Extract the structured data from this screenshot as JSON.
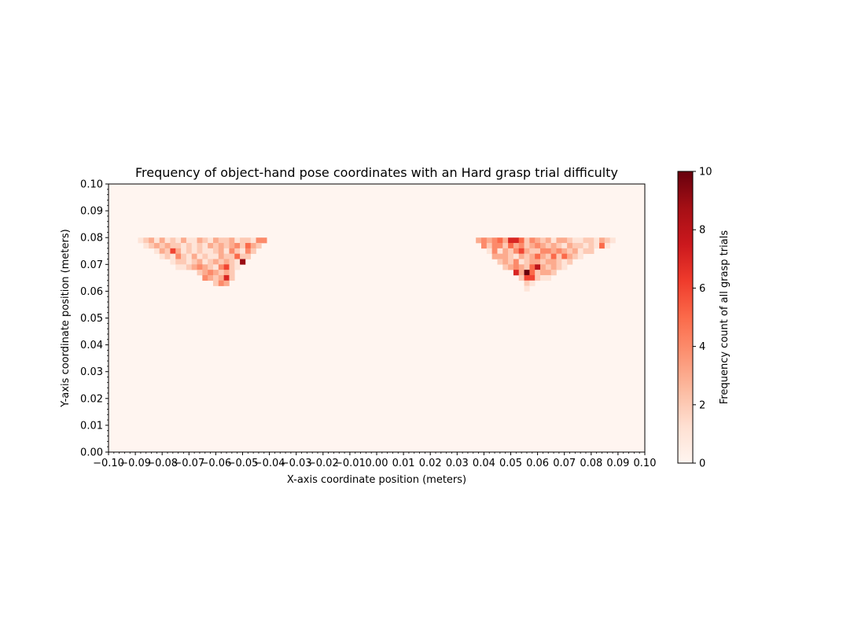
{
  "chart_data": {
    "type": "heatmap",
    "title": "Frequency of object-hand pose coordinates with an Hard grasp trial difficulty",
    "xlabel": "X-axis coordinate position (meters)",
    "ylabel": "Y-axis coordinate position (meters)",
    "xlim": [
      -0.1,
      0.1
    ],
    "ylim": [
      0.0,
      0.1
    ],
    "xticks": [
      "−0.10",
      "−0.09",
      "−0.08",
      "−0.07",
      "−0.06",
      "−0.05",
      "−0.04",
      "−0.03",
      "−0.02",
      "−0.01",
      "0.00",
      "0.01",
      "0.02",
      "0.03",
      "0.04",
      "0.05",
      "0.06",
      "0.07",
      "0.08",
      "0.09",
      "0.10"
    ],
    "yticks": [
      "0.00",
      "0.01",
      "0.02",
      "0.03",
      "0.04",
      "0.05",
      "0.06",
      "0.07",
      "0.08",
      "0.09",
      "0.10"
    ],
    "colormap": "Reds",
    "colorbar": {
      "label": "Frequency count of all grasp trials",
      "range": [
        0,
        10
      ],
      "ticks": [
        "0",
        "2",
        "4",
        "6",
        "8",
        "10"
      ]
    },
    "bin_size": 0.002,
    "minor_ticks": true,
    "grid": false,
    "cells": [
      [
        -0.088,
        0.079,
        1
      ],
      [
        -0.086,
        0.079,
        2
      ],
      [
        -0.084,
        0.079,
        3
      ],
      [
        -0.082,
        0.079,
        1
      ],
      [
        -0.08,
        0.079,
        3
      ],
      [
        -0.078,
        0.079,
        1
      ],
      [
        -0.076,
        0.079,
        2
      ],
      [
        -0.074,
        0.079,
        1
      ],
      [
        -0.072,
        0.079,
        3
      ],
      [
        -0.07,
        0.079,
        1
      ],
      [
        -0.068,
        0.079,
        1
      ],
      [
        -0.066,
        0.079,
        3
      ],
      [
        -0.064,
        0.079,
        2
      ],
      [
        -0.062,
        0.079,
        1
      ],
      [
        -0.06,
        0.079,
        3
      ],
      [
        -0.058,
        0.079,
        2
      ],
      [
        -0.056,
        0.079,
        2
      ],
      [
        -0.054,
        0.079,
        3
      ],
      [
        -0.052,
        0.079,
        1
      ],
      [
        -0.05,
        0.079,
        2
      ],
      [
        -0.048,
        0.079,
        2
      ],
      [
        -0.046,
        0.079,
        1
      ],
      [
        -0.044,
        0.079,
        4
      ],
      [
        -0.042,
        0.079,
        4
      ],
      [
        -0.086,
        0.077,
        1
      ],
      [
        -0.084,
        0.077,
        2
      ],
      [
        -0.082,
        0.077,
        3
      ],
      [
        -0.08,
        0.077,
        2
      ],
      [
        -0.078,
        0.077,
        3
      ],
      [
        -0.076,
        0.077,
        2
      ],
      [
        -0.074,
        0.077,
        2
      ],
      [
        -0.072,
        0.077,
        1
      ],
      [
        -0.07,
        0.077,
        2
      ],
      [
        -0.068,
        0.077,
        1
      ],
      [
        -0.066,
        0.077,
        2
      ],
      [
        -0.064,
        0.077,
        1
      ],
      [
        -0.062,
        0.077,
        3
      ],
      [
        -0.06,
        0.077,
        2
      ],
      [
        -0.058,
        0.077,
        3
      ],
      [
        -0.056,
        0.077,
        2
      ],
      [
        -0.054,
        0.077,
        3
      ],
      [
        -0.052,
        0.077,
        4
      ],
      [
        -0.05,
        0.077,
        2
      ],
      [
        -0.048,
        0.077,
        5
      ],
      [
        -0.046,
        0.077,
        3
      ],
      [
        -0.044,
        0.077,
        2
      ],
      [
        -0.082,
        0.075,
        1
      ],
      [
        -0.08,
        0.075,
        3
      ],
      [
        -0.078,
        0.075,
        2
      ],
      [
        -0.076,
        0.075,
        6
      ],
      [
        -0.074,
        0.075,
        3
      ],
      [
        -0.072,
        0.075,
        1
      ],
      [
        -0.07,
        0.075,
        2
      ],
      [
        -0.068,
        0.075,
        1
      ],
      [
        -0.066,
        0.075,
        2
      ],
      [
        -0.064,
        0.075,
        1
      ],
      [
        -0.062,
        0.075,
        1
      ],
      [
        -0.06,
        0.075,
        2
      ],
      [
        -0.058,
        0.075,
        3
      ],
      [
        -0.056,
        0.075,
        1
      ],
      [
        -0.054,
        0.075,
        4
      ],
      [
        -0.052,
        0.075,
        2
      ],
      [
        -0.05,
        0.075,
        1
      ],
      [
        -0.048,
        0.075,
        4
      ],
      [
        -0.046,
        0.075,
        2
      ],
      [
        -0.08,
        0.073,
        1
      ],
      [
        -0.078,
        0.073,
        2
      ],
      [
        -0.076,
        0.073,
        1
      ],
      [
        -0.074,
        0.073,
        4
      ],
      [
        -0.072,
        0.073,
        2
      ],
      [
        -0.07,
        0.073,
        1
      ],
      [
        -0.068,
        0.073,
        3
      ],
      [
        -0.066,
        0.073,
        1
      ],
      [
        -0.064,
        0.073,
        2
      ],
      [
        -0.062,
        0.073,
        1
      ],
      [
        -0.06,
        0.073,
        1
      ],
      [
        -0.058,
        0.073,
        3
      ],
      [
        -0.056,
        0.073,
        2
      ],
      [
        -0.054,
        0.073,
        2
      ],
      [
        -0.052,
        0.073,
        5
      ],
      [
        -0.05,
        0.073,
        2
      ],
      [
        -0.048,
        0.073,
        2
      ],
      [
        -0.076,
        0.071,
        1
      ],
      [
        -0.074,
        0.071,
        2
      ],
      [
        -0.072,
        0.071,
        2
      ],
      [
        -0.07,
        0.071,
        1
      ],
      [
        -0.068,
        0.071,
        2
      ],
      [
        -0.066,
        0.071,
        3
      ],
      [
        -0.064,
        0.071,
        1
      ],
      [
        -0.062,
        0.071,
        2
      ],
      [
        -0.06,
        0.071,
        3
      ],
      [
        -0.058,
        0.071,
        2
      ],
      [
        -0.056,
        0.071,
        3
      ],
      [
        -0.054,
        0.071,
        2
      ],
      [
        -0.052,
        0.071,
        1
      ],
      [
        -0.05,
        0.071,
        9
      ],
      [
        -0.074,
        0.069,
        1
      ],
      [
        -0.072,
        0.069,
        1
      ],
      [
        -0.07,
        0.069,
        2
      ],
      [
        -0.068,
        0.069,
        3
      ],
      [
        -0.066,
        0.069,
        4
      ],
      [
        -0.064,
        0.069,
        3
      ],
      [
        -0.062,
        0.069,
        2
      ],
      [
        -0.06,
        0.069,
        1
      ],
      [
        -0.058,
        0.069,
        4
      ],
      [
        -0.056,
        0.069,
        6
      ],
      [
        -0.054,
        0.069,
        2
      ],
      [
        -0.052,
        0.069,
        1
      ],
      [
        -0.066,
        0.067,
        2
      ],
      [
        -0.064,
        0.067,
        3
      ],
      [
        -0.062,
        0.067,
        4
      ],
      [
        -0.06,
        0.067,
        3
      ],
      [
        -0.058,
        0.067,
        2
      ],
      [
        -0.056,
        0.067,
        3
      ],
      [
        -0.054,
        0.067,
        2
      ],
      [
        -0.064,
        0.065,
        4
      ],
      [
        -0.062,
        0.065,
        3
      ],
      [
        -0.06,
        0.065,
        2
      ],
      [
        -0.058,
        0.065,
        3
      ],
      [
        -0.056,
        0.065,
        7
      ],
      [
        -0.054,
        0.065,
        2
      ],
      [
        -0.06,
        0.063,
        2
      ],
      [
        -0.058,
        0.063,
        4
      ],
      [
        -0.056,
        0.063,
        3
      ],
      [
        0.038,
        0.079,
        3
      ],
      [
        0.04,
        0.079,
        4
      ],
      [
        0.042,
        0.079,
        3
      ],
      [
        0.044,
        0.079,
        4
      ],
      [
        0.046,
        0.079,
        5
      ],
      [
        0.048,
        0.079,
        3
      ],
      [
        0.05,
        0.079,
        7
      ],
      [
        0.052,
        0.079,
        7
      ],
      [
        0.054,
        0.079,
        5
      ],
      [
        0.056,
        0.079,
        2
      ],
      [
        0.058,
        0.079,
        4
      ],
      [
        0.06,
        0.079,
        3
      ],
      [
        0.062,
        0.079,
        2
      ],
      [
        0.064,
        0.079,
        3
      ],
      [
        0.066,
        0.079,
        1
      ],
      [
        0.068,
        0.079,
        3
      ],
      [
        0.07,
        0.079,
        3
      ],
      [
        0.072,
        0.079,
        2
      ],
      [
        0.074,
        0.079,
        1
      ],
      [
        0.076,
        0.079,
        1
      ],
      [
        0.078,
        0.079,
        2
      ],
      [
        0.08,
        0.079,
        2
      ],
      [
        0.082,
        0.079,
        1
      ],
      [
        0.084,
        0.079,
        3
      ],
      [
        0.086,
        0.079,
        2
      ],
      [
        0.088,
        0.079,
        1
      ],
      [
        0.04,
        0.077,
        4
      ],
      [
        0.042,
        0.077,
        2
      ],
      [
        0.044,
        0.077,
        4
      ],
      [
        0.046,
        0.077,
        4
      ],
      [
        0.048,
        0.077,
        2
      ],
      [
        0.05,
        0.077,
        5
      ],
      [
        0.052,
        0.077,
        3
      ],
      [
        0.054,
        0.077,
        4
      ],
      [
        0.056,
        0.077,
        2
      ],
      [
        0.058,
        0.077,
        3
      ],
      [
        0.06,
        0.077,
        4
      ],
      [
        0.062,
        0.077,
        3
      ],
      [
        0.064,
        0.077,
        2
      ],
      [
        0.066,
        0.077,
        3
      ],
      [
        0.068,
        0.077,
        2
      ],
      [
        0.07,
        0.077,
        1
      ],
      [
        0.072,
        0.077,
        3
      ],
      [
        0.074,
        0.077,
        2
      ],
      [
        0.076,
        0.077,
        2
      ],
      [
        0.078,
        0.077,
        1
      ],
      [
        0.08,
        0.077,
        2
      ],
      [
        0.082,
        0.077,
        1
      ],
      [
        0.084,
        0.077,
        5
      ],
      [
        0.086,
        0.077,
        1
      ],
      [
        0.042,
        0.075,
        1
      ],
      [
        0.044,
        0.075,
        4
      ],
      [
        0.046,
        0.075,
        1
      ],
      [
        0.048,
        0.075,
        3
      ],
      [
        0.05,
        0.075,
        2
      ],
      [
        0.052,
        0.075,
        4
      ],
      [
        0.054,
        0.075,
        6
      ],
      [
        0.056,
        0.075,
        3
      ],
      [
        0.058,
        0.075,
        2
      ],
      [
        0.06,
        0.075,
        2
      ],
      [
        0.062,
        0.075,
        4
      ],
      [
        0.064,
        0.075,
        4
      ],
      [
        0.066,
        0.075,
        3
      ],
      [
        0.068,
        0.075,
        4
      ],
      [
        0.07,
        0.075,
        3
      ],
      [
        0.072,
        0.075,
        2
      ],
      [
        0.074,
        0.075,
        3
      ],
      [
        0.076,
        0.075,
        1
      ],
      [
        0.078,
        0.075,
        2
      ],
      [
        0.08,
        0.075,
        2
      ],
      [
        0.044,
        0.073,
        3
      ],
      [
        0.046,
        0.073,
        3
      ],
      [
        0.048,
        0.073,
        3
      ],
      [
        0.05,
        0.073,
        2
      ],
      [
        0.052,
        0.073,
        1
      ],
      [
        0.054,
        0.073,
        3
      ],
      [
        0.056,
        0.073,
        2
      ],
      [
        0.058,
        0.073,
        3
      ],
      [
        0.06,
        0.073,
        5
      ],
      [
        0.062,
        0.073,
        3
      ],
      [
        0.064,
        0.073,
        2
      ],
      [
        0.066,
        0.073,
        5
      ],
      [
        0.068,
        0.073,
        2
      ],
      [
        0.07,
        0.073,
        5
      ],
      [
        0.072,
        0.073,
        3
      ],
      [
        0.074,
        0.073,
        2
      ],
      [
        0.076,
        0.073,
        1
      ],
      [
        0.046,
        0.071,
        2
      ],
      [
        0.048,
        0.071,
        3
      ],
      [
        0.05,
        0.071,
        2
      ],
      [
        0.052,
        0.071,
        4
      ],
      [
        0.054,
        0.071,
        1
      ],
      [
        0.056,
        0.071,
        2
      ],
      [
        0.058,
        0.071,
        3
      ],
      [
        0.06,
        0.071,
        3
      ],
      [
        0.062,
        0.071,
        2
      ],
      [
        0.064,
        0.071,
        3
      ],
      [
        0.066,
        0.071,
        3
      ],
      [
        0.068,
        0.071,
        2
      ],
      [
        0.07,
        0.071,
        1
      ],
      [
        0.072,
        0.071,
        2
      ],
      [
        0.048,
        0.069,
        2
      ],
      [
        0.05,
        0.069,
        3
      ],
      [
        0.052,
        0.069,
        4
      ],
      [
        0.054,
        0.069,
        3
      ],
      [
        0.056,
        0.069,
        2
      ],
      [
        0.058,
        0.069,
        5
      ],
      [
        0.06,
        0.069,
        8
      ],
      [
        0.062,
        0.069,
        3
      ],
      [
        0.064,
        0.069,
        2
      ],
      [
        0.066,
        0.069,
        3
      ],
      [
        0.068,
        0.069,
        2
      ],
      [
        0.07,
        0.069,
        1
      ],
      [
        0.052,
        0.067,
        7
      ],
      [
        0.054,
        0.067,
        3
      ],
      [
        0.056,
        0.067,
        10
      ],
      [
        0.058,
        0.067,
        5
      ],
      [
        0.06,
        0.067,
        2
      ],
      [
        0.062,
        0.067,
        3
      ],
      [
        0.064,
        0.067,
        3
      ],
      [
        0.066,
        0.067,
        2
      ],
      [
        0.054,
        0.065,
        2
      ],
      [
        0.056,
        0.065,
        6
      ],
      [
        0.058,
        0.065,
        6
      ],
      [
        0.06,
        0.065,
        2
      ],
      [
        0.062,
        0.065,
        1
      ],
      [
        0.064,
        0.065,
        1
      ],
      [
        0.056,
        0.063,
        2
      ],
      [
        0.058,
        0.063,
        1
      ],
      [
        0.056,
        0.061,
        1
      ]
    ]
  }
}
